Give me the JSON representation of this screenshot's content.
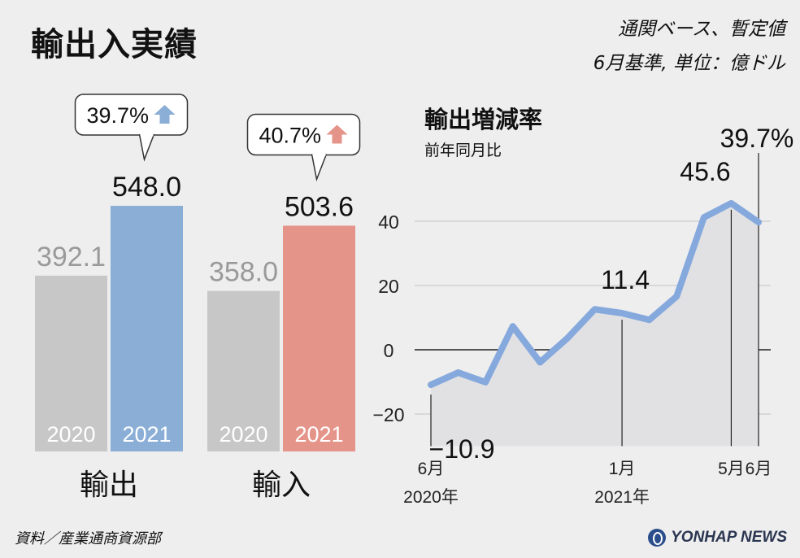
{
  "header": {
    "title": "輸出入実績",
    "note_line1": "通関ベース、暫定値",
    "note_line2": "6月基準, 単位：億ドル"
  },
  "footer": {
    "source": "資料／産業通商資源部",
    "logo": "YONHAP NEWS"
  },
  "colors": {
    "grey_bar": "#c7c7c7",
    "export_2021": "#8aaed6",
    "import_2021": "#e5948a",
    "line": "#86a9dd",
    "area": "#e1e1e3"
  },
  "chart_data": [
    {
      "type": "bar",
      "categories": [
        "輸出",
        "輸入"
      ],
      "series": [
        {
          "name": "2020",
          "values": [
            392.1,
            358.0
          ],
          "labels": [
            "392.1",
            "358.0"
          ]
        },
        {
          "name": "2021",
          "values": [
            548.0,
            503.6
          ],
          "labels": [
            "548.0",
            "503.6"
          ]
        }
      ],
      "change_labels": [
        "39.7%",
        "40.7%"
      ],
      "change_direction": [
        "up",
        "up"
      ]
    },
    {
      "type": "line",
      "title": "輸出増減率",
      "subtitle": "前年同月比",
      "x": [
        "2020-06",
        "2020-07",
        "2020-08",
        "2020-09",
        "2020-10",
        "2020-11",
        "2020-12",
        "2021-01",
        "2021-02",
        "2021-03",
        "2021-04",
        "2021-05",
        "2021-06"
      ],
      "values": [
        -10.9,
        -7.1,
        -10.1,
        7.3,
        -3.9,
        3.6,
        12.6,
        11.4,
        9.3,
        16.6,
        41.2,
        45.6,
        39.7
      ],
      "ylim": [
        -30,
        50
      ],
      "yticks": [
        -20,
        0,
        20,
        40
      ],
      "ytick_labels": [
        "−20",
        "0",
        "20",
        "40"
      ],
      "xtick_labels": [
        {
          "x": "2020-06",
          "line1": "6月",
          "line2": "2020年"
        },
        {
          "x": "2021-01",
          "line1": "1月",
          "line2": "2021年"
        },
        {
          "x": "2021-05",
          "line1": "5月",
          "line2": ""
        },
        {
          "x": "2021-06",
          "line1": "6月",
          "line2": ""
        }
      ],
      "annotations": [
        {
          "x": "2020-06",
          "text": "−10.9"
        },
        {
          "x": "2021-01",
          "text": "11.4"
        },
        {
          "x": "2021-05",
          "text": "45.6"
        },
        {
          "x": "2021-06",
          "text": "39.7%"
        }
      ],
      "grid": true
    }
  ]
}
